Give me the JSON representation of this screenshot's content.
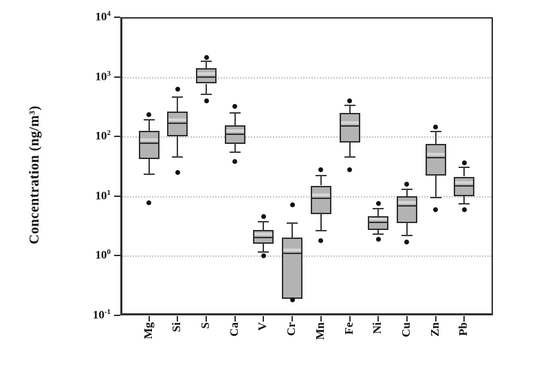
{
  "figure": {
    "background": "#ffffff"
  },
  "chart_data": {
    "type": "boxplot",
    "title": "",
    "xlabel": "",
    "ylabel": "Concentration (ng/m³)",
    "y_scale": "log",
    "ylim": [
      0.1,
      10000
    ],
    "y_tick_exponents": [
      4,
      3,
      2,
      1,
      0,
      -1
    ],
    "y_tick_base": "10",
    "gridlines_at": [
      1000,
      100,
      10,
      1
    ],
    "grid": "dotted-horizontal",
    "legend": "none",
    "categories": [
      "Mg",
      "Si",
      "S",
      "Ca",
      "V",
      "Cr",
      "Mn",
      "Fe",
      "Ni",
      "Cu",
      "Zn",
      "Pb"
    ],
    "boxes": [
      {
        "label": "Mg",
        "whisker_high": 190,
        "q3": 125,
        "median": 78,
        "q1": 42,
        "whisker_low": 23,
        "outliers_high": [
          230
        ],
        "outliers_low": [
          7.8
        ]
      },
      {
        "label": "Si",
        "whisker_high": 460,
        "q3": 260,
        "median": 165,
        "q1": 100,
        "whisker_low": 45,
        "outliers_high": [
          620
        ],
        "outliers_low": [
          25
        ]
      },
      {
        "label": "S",
        "whisker_high": 1800,
        "q3": 1380,
        "median": 1000,
        "q1": 760,
        "whisker_low": 510,
        "outliers_high": [
          2100
        ],
        "outliers_low": [
          400
        ]
      },
      {
        "label": "Ca",
        "whisker_high": 250,
        "q3": 155,
        "median": 110,
        "q1": 75,
        "whisker_low": 54,
        "outliers_high": [
          320
        ],
        "outliers_low": [
          38
        ]
      },
      {
        "label": "V",
        "whisker_high": 3.7,
        "q3": 2.7,
        "median": 2.0,
        "q1": 1.6,
        "whisker_low": 1.15,
        "outliers_high": [
          4.5
        ],
        "outliers_low": [
          1.0
        ]
      },
      {
        "label": "Cr",
        "whisker_high": 3.5,
        "q3": 2.0,
        "median": 1.1,
        "q1": 0.19,
        "whisker_low": null,
        "outliers_high": [
          7.2
        ],
        "outliers_low": [
          0.18
        ]
      },
      {
        "label": "Mn",
        "whisker_high": 22,
        "q3": 15,
        "median": 9.2,
        "q1": 5.0,
        "whisker_low": 2.6,
        "outliers_high": [
          28
        ],
        "outliers_low": [
          1.8
        ]
      },
      {
        "label": "Fe",
        "whisker_high": 330,
        "q3": 245,
        "median": 150,
        "q1": 79,
        "whisker_low": 45,
        "outliers_high": [
          400
        ],
        "outliers_low": [
          28
        ]
      },
      {
        "label": "Ni",
        "whisker_high": 6.2,
        "q3": 4.6,
        "median": 3.6,
        "q1": 2.7,
        "whisker_low": 2.3,
        "outliers_high": [
          7.5
        ],
        "outliers_low": [
          1.9
        ]
      },
      {
        "label": "Cu",
        "whisker_high": 13,
        "q3": 10,
        "median": 6.8,
        "q1": 3.5,
        "whisker_low": 2.2,
        "outliers_high": [
          16
        ],
        "outliers_low": [
          1.7
        ]
      },
      {
        "label": "Zn",
        "whisker_high": 120,
        "q3": 75,
        "median": 44,
        "q1": 22,
        "whisker_low": 9.5,
        "outliers_high": [
          145
        ],
        "outliers_low": [
          6.0
        ]
      },
      {
        "label": "Pb",
        "whisker_high": 30,
        "q3": 21,
        "median": 15,
        "q1": 10,
        "whisker_low": 7.4,
        "outliers_high": [
          36
        ],
        "outliers_low": [
          6.0
        ]
      }
    ],
    "colors": {
      "box_fill": "#b3b3b3",
      "box_border": "#2f2f2f",
      "median": "#2f2f2f",
      "whisker": "#3a3a3a",
      "outlier": "#111111",
      "gridline": "#c6c6c6",
      "axis": "#2f2f2f",
      "text": "#111111"
    }
  }
}
